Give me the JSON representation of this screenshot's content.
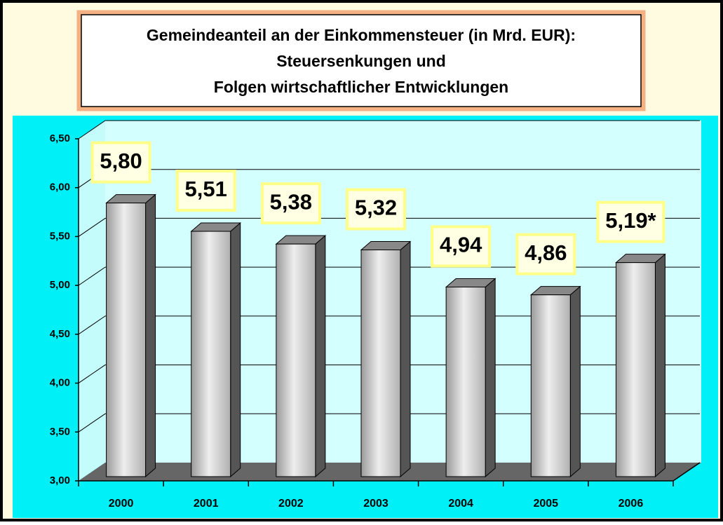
{
  "chart_data": {
    "type": "bar3d",
    "title": [
      "Gemeindeanteil an der Einkommensteuer (in Mrd. EUR):",
      "Steuersenkungen und",
      "Folgen wirtschaftlicher Entwicklungen"
    ],
    "categories": [
      "2000",
      "2001",
      "2002",
      "2003",
      "2004",
      "2005",
      "2006"
    ],
    "values": [
      5.8,
      5.51,
      5.38,
      5.32,
      4.94,
      4.86,
      5.19
    ],
    "value_labels": [
      "5,80",
      "5,51",
      "5,38",
      "5,32",
      "4,94",
      "4,86",
      "5,19*"
    ],
    "color": "#c8c8c8",
    "ylim": [
      3.0,
      6.5
    ],
    "yticks": [
      {
        "value": 3.0,
        "label": "3,00"
      },
      {
        "value": 3.5,
        "label": "3,50"
      },
      {
        "value": 4.0,
        "label": "4,00"
      },
      {
        "value": 4.5,
        "label": "4,50"
      },
      {
        "value": 5.0,
        "label": "5,00"
      },
      {
        "value": 5.5,
        "label": "5,50"
      },
      {
        "value": 6.0,
        "label": "6,00"
      },
      {
        "value": 6.5,
        "label": "6,50"
      }
    ],
    "grid": true
  }
}
